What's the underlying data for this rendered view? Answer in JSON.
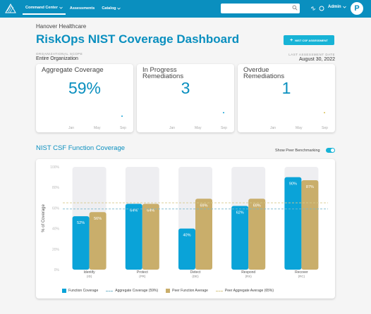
{
  "nav": {
    "items": [
      {
        "label": "Command Center",
        "active": true,
        "caret": true
      },
      {
        "label": "Assessments",
        "active": false,
        "caret": false
      },
      {
        "label": "Catalog",
        "active": false,
        "caret": true
      }
    ],
    "search_placeholder": "",
    "user_label": "Admin",
    "avatar_initial": "P",
    "icons": [
      "brand-logo-icon",
      "search-icon",
      "link-icon",
      "chat-icon",
      "chevron-down-icon"
    ]
  },
  "header": {
    "org": "Hanover Healthcare",
    "title": "RiskOps NIST Coverage Dashboard",
    "cta_label": "NIST CSF ASSESSMENT",
    "org_label": "ORGANIZATIONAL SCOPE",
    "org_value": "Entire Organization",
    "date_label": "LAST ASSESSMENT DATE",
    "date_value": "August 30, 2022"
  },
  "kpis": [
    {
      "title": "Aggregate Coverage",
      "value": "59%",
      "ticks": [
        "Jan",
        "May",
        "Sep"
      ]
    },
    {
      "title": "In Progress Remediations",
      "value": "3",
      "ticks": [
        "Jan",
        "May",
        "Sep"
      ]
    },
    {
      "title": "Overdue Remediations",
      "value": "1",
      "ticks": [
        "Jan",
        "May",
        "Sep"
      ]
    }
  ],
  "section": {
    "title": "NIST CSF Function Coverage",
    "toggle_label": "Show Peer Benchmarking",
    "toggle_on": true
  },
  "colors": {
    "primary": "#0a8fbf",
    "function": "#0aa3d8",
    "peer": "#c9ae6b",
    "track": "#eeeef1",
    "kpi_dot_blue": "#1aa5d6",
    "kpi_dot_gold": "#d8c25a"
  },
  "chart_data": {
    "type": "bar",
    "ylabel": "% of Coverage",
    "ylim": [
      0,
      100
    ],
    "yticks": [
      "0%",
      "20%",
      "40%",
      "60%",
      "80%",
      "100%"
    ],
    "categories": [
      "Identify",
      "Protect",
      "Detect",
      "Respond",
      "Recover"
    ],
    "category_codes": [
      "(ID)",
      "(PR)",
      "(DE)",
      "(RS)",
      "(RC)"
    ],
    "series": [
      {
        "name": "Function Coverage",
        "values": [
          52,
          64,
          40,
          62,
          90
        ]
      },
      {
        "name": "Peer Function Average",
        "values": [
          56,
          64,
          69,
          69,
          87
        ]
      }
    ],
    "labels": {
      "function": [
        "52%",
        "64%",
        "40%",
        "62%",
        "90%"
      ],
      "peer": [
        "56%",
        "64%",
        "69%",
        "69%",
        "87%"
      ]
    },
    "reference_lines": [
      {
        "name": "Aggregate Coverage (59%)",
        "value": 59
      },
      {
        "name": "Peer Aggregate Average (65%)",
        "value": 65
      }
    ]
  }
}
